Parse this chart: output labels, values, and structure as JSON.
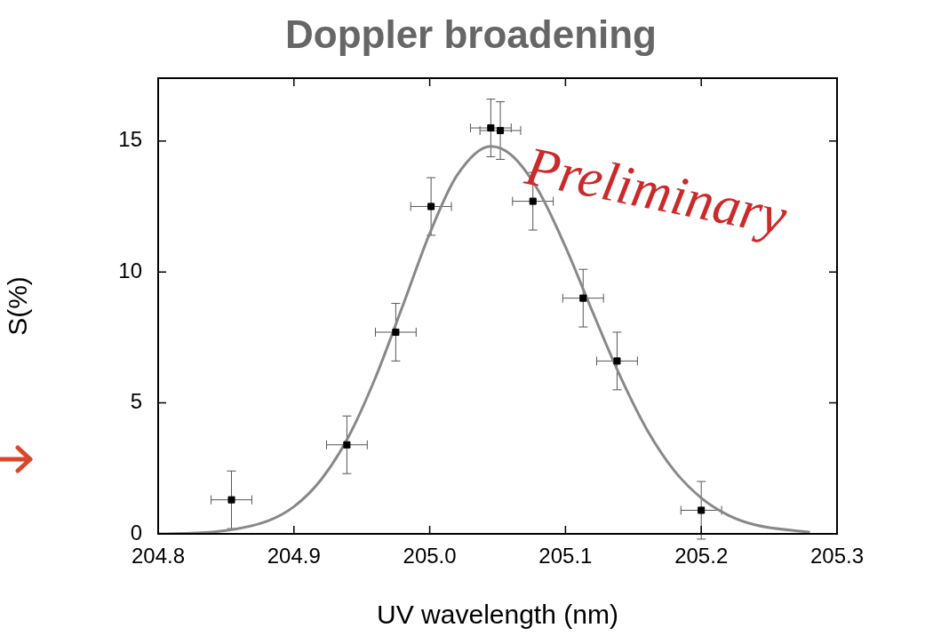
{
  "chart_data": {
    "type": "scatter",
    "title": "Doppler broadening",
    "xlabel": "UV wavelength (nm)",
    "ylabel": "S(%)",
    "xlim": [
      204.8,
      205.3
    ],
    "xticks": [
      {
        "value": 204.8,
        "label": "204.8"
      },
      {
        "value": 204.9,
        "label": "204.9"
      },
      {
        "value": 205.0,
        "label": "205.0"
      },
      {
        "value": 205.1,
        "label": "205.1"
      },
      {
        "value": 205.2,
        "label": "205.2"
      },
      {
        "value": 205.3,
        "label": "205.3"
      }
    ],
    "ylim": [
      0,
      17.4
    ],
    "yticks": [
      0,
      5,
      10,
      15
    ],
    "grid": false,
    "legend": false,
    "annotations": [
      "Preliminary"
    ],
    "series": [
      {
        "color": "#000000",
        "marker": "square",
        "x": [
          204.854,
          204.939,
          204.975,
          205.001,
          205.045,
          205.052,
          205.076,
          205.113,
          205.138,
          205.2
        ],
        "values": [
          1.3,
          3.4,
          7.7,
          12.5,
          15.5,
          15.4,
          12.7,
          9.0,
          6.6,
          0.9
        ],
        "errors": [
          1.1,
          1.1,
          1.1,
          1.1,
          1.1,
          1.1,
          1.1,
          1.1,
          1.1,
          1.1
        ],
        "xerrors": [
          0.015,
          0.015,
          0.015,
          0.015,
          0.015,
          0.015,
          0.015,
          0.015,
          0.015,
          0.015
        ]
      },
      {
        "type": "line",
        "color": "#888888",
        "marker": "none",
        "x": [
          204.8,
          204.84,
          204.88,
          204.9,
          204.92,
          204.94,
          204.96,
          204.98,
          205.0,
          205.02,
          205.045,
          205.06,
          205.08,
          205.1,
          205.12,
          205.14,
          205.16,
          205.18,
          205.2,
          205.22,
          205.24,
          205.28
        ],
        "values": [
          0.0,
          0.07,
          0.48,
          1.04,
          2.07,
          3.69,
          5.96,
          8.69,
          11.47,
          13.68,
          14.8,
          14.47,
          13.11,
          10.96,
          8.47,
          6.05,
          3.98,
          2.42,
          1.37,
          0.71,
          0.34,
          0.06
        ]
      }
    ]
  }
}
